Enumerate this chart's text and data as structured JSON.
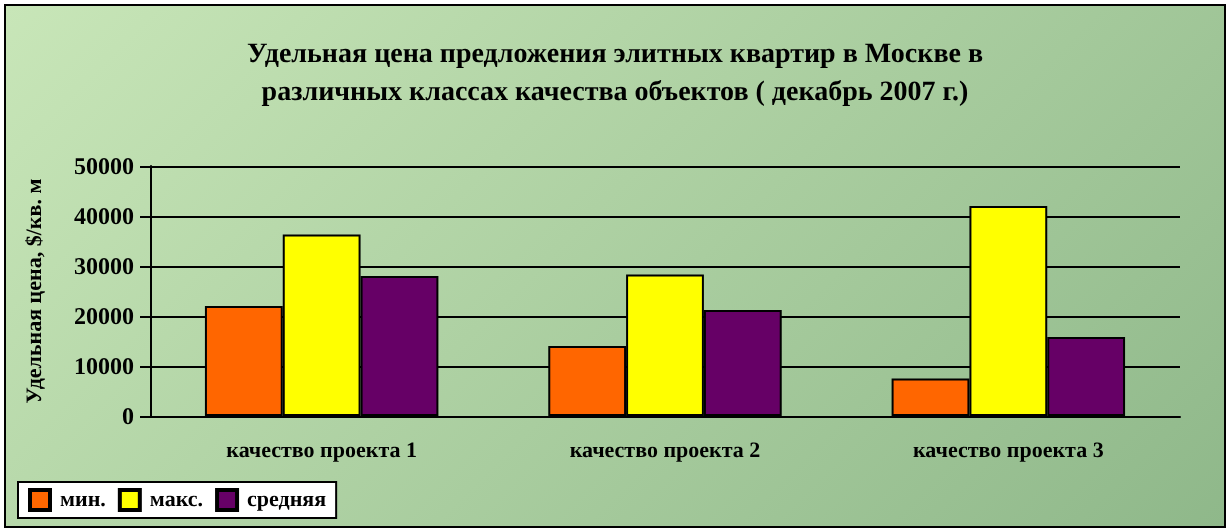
{
  "chart_data": {
    "type": "bar",
    "title": "Удельная цена предложения элитных квартир в Москве в\nразличных классах качества объектов ( декабрь 2007 г.)",
    "ylabel": "Удельная цена, $/кв. м",
    "categories": [
      "качество проекта 1",
      "качество проекта 2",
      "качество проекта 3"
    ],
    "series": [
      {
        "name": "мин.",
        "color": "#ff6600",
        "values": [
          22000,
          14000,
          7500
        ]
      },
      {
        "name": "макс.",
        "color": "#ffff00",
        "values": [
          36300,
          28300,
          42000
        ]
      },
      {
        "name": "средняя",
        "color": "#660066",
        "values": [
          28000,
          21200,
          15800
        ]
      }
    ],
    "ylim": [
      0,
      50000
    ],
    "yticks": [
      0,
      10000,
      20000,
      30000,
      40000,
      50000
    ],
    "grid": "y",
    "legend": "bottom left"
  }
}
